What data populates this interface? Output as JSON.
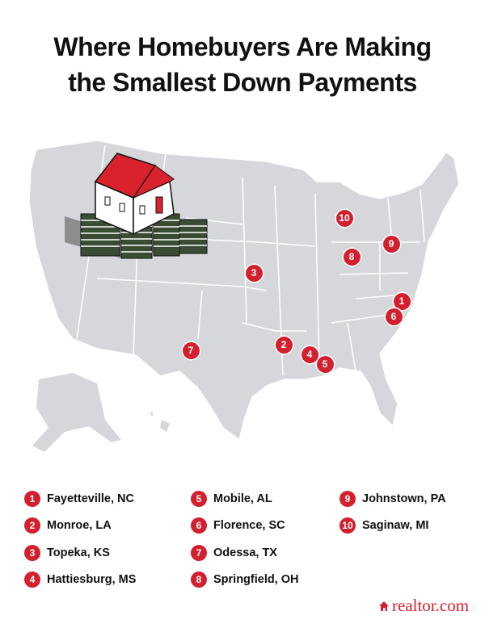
{
  "title": {
    "line1": "Where Homebuyers Are Making",
    "line2": "the Smallest Down Payments"
  },
  "colors": {
    "marker": "#d2202f",
    "land": "#d6d7db",
    "border": "#ffffff",
    "roof": "#d9222c",
    "money": "#3a4d34"
  },
  "illustration": "house-on-money-stacks",
  "cities": [
    {
      "rank": "1",
      "name": "Fayetteville, NC"
    },
    {
      "rank": "2",
      "name": "Monroe, LA"
    },
    {
      "rank": "3",
      "name": "Topeka, KS"
    },
    {
      "rank": "4",
      "name": "Hattiesburg, MS"
    },
    {
      "rank": "5",
      "name": "Mobile, AL"
    },
    {
      "rank": "6",
      "name": "Florence, SC"
    },
    {
      "rank": "7",
      "name": "Odessa, TX"
    },
    {
      "rank": "8",
      "name": "Springfield, OH"
    },
    {
      "rank": "9",
      "name": "Johnstown, PA"
    },
    {
      "rank": "10",
      "name": "Saginaw, MI"
    }
  ],
  "logo": {
    "brand": "realtor.com",
    "icon": "house-icon"
  }
}
